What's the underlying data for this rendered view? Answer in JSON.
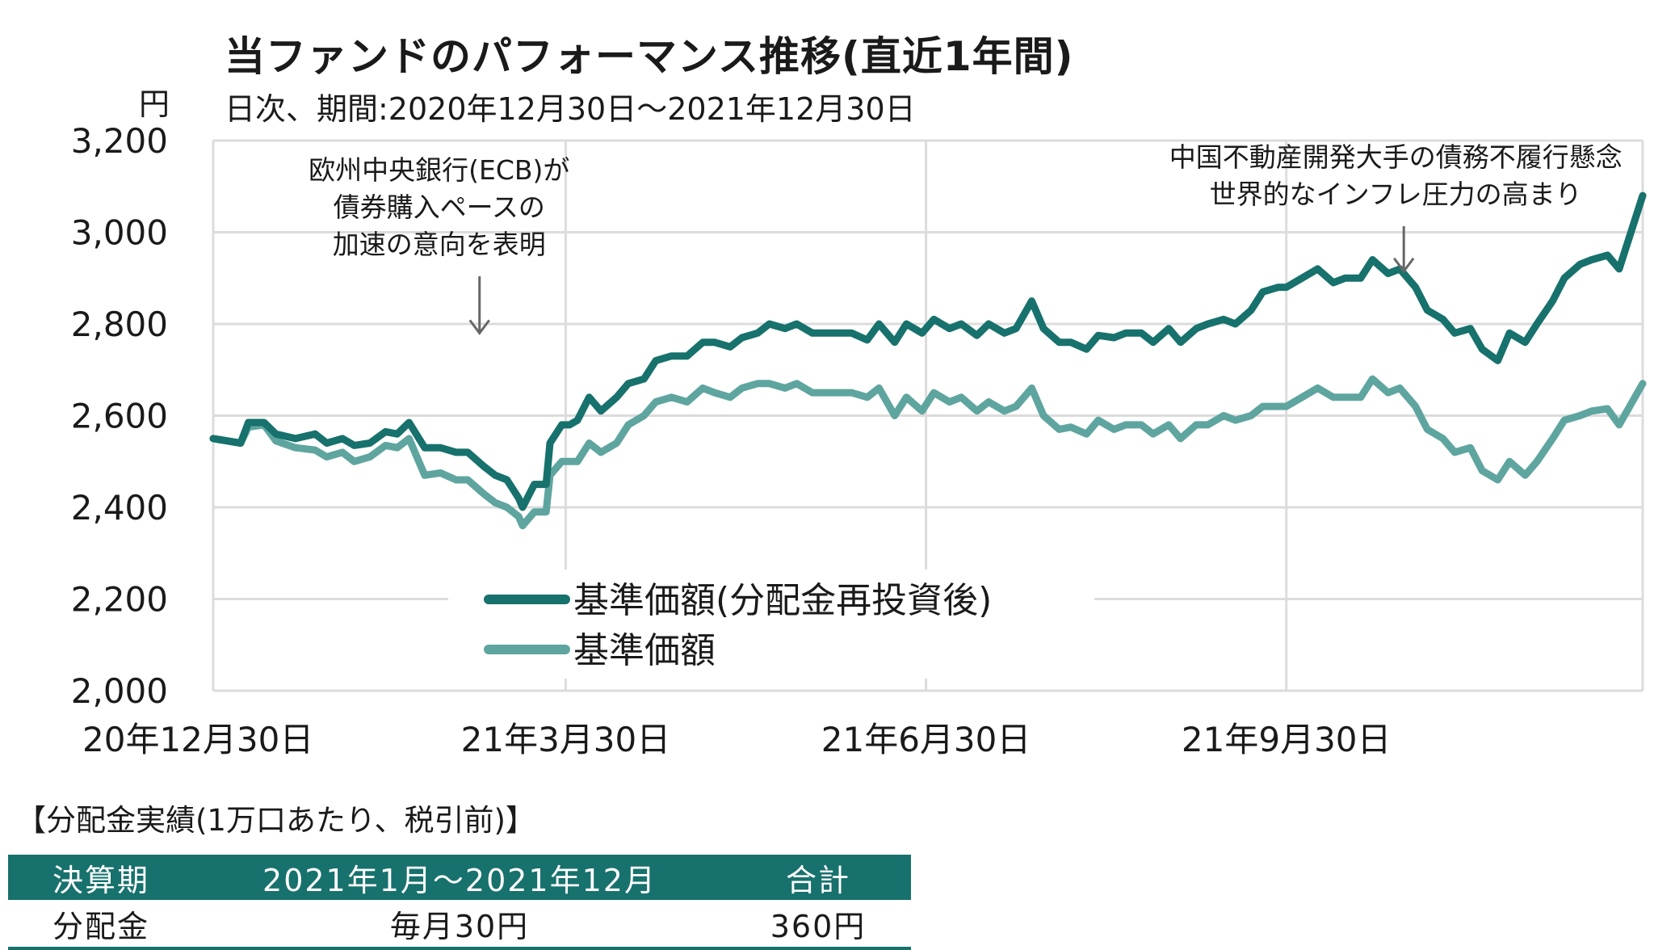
{
  "title": "当ファンドのパフォーマンス推移(直近1年間)",
  "subtitle": "日次、期間:2020年12月30日～2021年12月30日",
  "unit": "円",
  "chart_data": {
    "type": "line",
    "title": "当ファンドのパフォーマンス推移(直近1年間)",
    "subtitle": "日次、期間:2020年12月30日～2021年12月30日",
    "ylabel": "円",
    "ylim": [
      2000,
      3200
    ],
    "yticks": [
      {
        "value": 3200,
        "label": "3,200"
      },
      {
        "value": 3000,
        "label": "3,000"
      },
      {
        "value": 2800,
        "label": "2,800"
      },
      {
        "value": 2600,
        "label": "2,600"
      },
      {
        "value": 2400,
        "label": "2,400"
      },
      {
        "value": 2200,
        "label": "2,200"
      },
      {
        "value": 2000,
        "label": "2,000"
      }
    ],
    "xlim": [
      "2020-12-30",
      "2021-12-30"
    ],
    "xticks": [
      {
        "value": "2020-12-30",
        "label": "20年12月30日"
      },
      {
        "value": "2021-03-30",
        "label": "21年3月30日"
      },
      {
        "value": "2021-06-30",
        "label": "21年6月30日"
      },
      {
        "value": "2021-09-30",
        "label": "21年9月30日"
      }
    ],
    "grid": true,
    "legend_position": "center",
    "series": [
      {
        "name": "基準価額(分配金再投資後)",
        "color": "#17716c",
        "points": [
          [
            "2020-12-30",
            2550
          ],
          [
            "2021-01-06",
            2540
          ],
          [
            "2021-01-08",
            2585
          ],
          [
            "2021-01-12",
            2585
          ],
          [
            "2021-01-15",
            2560
          ],
          [
            "2021-01-20",
            2550
          ],
          [
            "2021-01-25",
            2560
          ],
          [
            "2021-01-28",
            2540
          ],
          [
            "2021-02-01",
            2550
          ],
          [
            "2021-02-04",
            2535
          ],
          [
            "2021-02-08",
            2540
          ],
          [
            "2021-02-12",
            2565
          ],
          [
            "2021-02-15",
            2560
          ],
          [
            "2021-02-18",
            2585
          ],
          [
            "2021-02-22",
            2530
          ],
          [
            "2021-02-26",
            2530
          ],
          [
            "2021-03-02",
            2520
          ],
          [
            "2021-03-05",
            2520
          ],
          [
            "2021-03-09",
            2490
          ],
          [
            "2021-03-12",
            2470
          ],
          [
            "2021-03-15",
            2460
          ],
          [
            "2021-03-18",
            2420
          ],
          [
            "2021-03-19",
            2400
          ],
          [
            "2021-03-22",
            2450
          ],
          [
            "2021-03-25",
            2450
          ],
          [
            "2021-03-26",
            2540
          ],
          [
            "2021-03-29",
            2580
          ],
          [
            "2021-03-31",
            2580
          ],
          [
            "2021-04-02",
            2590
          ],
          [
            "2021-04-05",
            2640
          ],
          [
            "2021-04-08",
            2610
          ],
          [
            "2021-04-12",
            2640
          ],
          [
            "2021-04-15",
            2670
          ],
          [
            "2021-04-19",
            2680
          ],
          [
            "2021-04-22",
            2720
          ],
          [
            "2021-04-26",
            2730
          ],
          [
            "2021-04-30",
            2730
          ],
          [
            "2021-05-04",
            2760
          ],
          [
            "2021-05-07",
            2760
          ],
          [
            "2021-05-11",
            2750
          ],
          [
            "2021-05-14",
            2770
          ],
          [
            "2021-05-18",
            2780
          ],
          [
            "2021-05-21",
            2800
          ],
          [
            "2021-05-25",
            2790
          ],
          [
            "2021-05-28",
            2800
          ],
          [
            "2021-06-01",
            2780
          ],
          [
            "2021-06-04",
            2780
          ],
          [
            "2021-06-08",
            2780
          ],
          [
            "2021-06-11",
            2780
          ],
          [
            "2021-06-15",
            2765
          ],
          [
            "2021-06-18",
            2800
          ],
          [
            "2021-06-22",
            2760
          ],
          [
            "2021-06-25",
            2800
          ],
          [
            "2021-06-29",
            2780
          ],
          [
            "2021-07-02",
            2810
          ],
          [
            "2021-07-06",
            2790
          ],
          [
            "2021-07-09",
            2800
          ],
          [
            "2021-07-13",
            2775
          ],
          [
            "2021-07-16",
            2800
          ],
          [
            "2021-07-20",
            2780
          ],
          [
            "2021-07-23",
            2790
          ],
          [
            "2021-07-27",
            2850
          ],
          [
            "2021-07-30",
            2790
          ],
          [
            "2021-08-03",
            2760
          ],
          [
            "2021-08-06",
            2760
          ],
          [
            "2021-08-10",
            2745
          ],
          [
            "2021-08-13",
            2775
          ],
          [
            "2021-08-17",
            2770
          ],
          [
            "2021-08-20",
            2780
          ],
          [
            "2021-08-24",
            2780
          ],
          [
            "2021-08-27",
            2760
          ],
          [
            "2021-08-31",
            2790
          ],
          [
            "2021-09-03",
            2760
          ],
          [
            "2021-09-07",
            2790
          ],
          [
            "2021-09-10",
            2800
          ],
          [
            "2021-09-14",
            2810
          ],
          [
            "2021-09-17",
            2800
          ],
          [
            "2021-09-21",
            2830
          ],
          [
            "2021-09-24",
            2870
          ],
          [
            "2021-09-28",
            2880
          ],
          [
            "2021-09-30",
            2880
          ],
          [
            "2021-10-04",
            2900
          ],
          [
            "2021-10-08",
            2920
          ],
          [
            "2021-10-12",
            2890
          ],
          [
            "2021-10-15",
            2900
          ],
          [
            "2021-10-19",
            2900
          ],
          [
            "2021-10-22",
            2940
          ],
          [
            "2021-10-26",
            2910
          ],
          [
            "2021-10-29",
            2920
          ],
          [
            "2021-11-02",
            2880
          ],
          [
            "2021-11-05",
            2830
          ],
          [
            "2021-11-09",
            2810
          ],
          [
            "2021-11-12",
            2780
          ],
          [
            "2021-11-16",
            2790
          ],
          [
            "2021-11-19",
            2745
          ],
          [
            "2021-11-23",
            2720
          ],
          [
            "2021-11-26",
            2780
          ],
          [
            "2021-11-30",
            2760
          ],
          [
            "2021-12-03",
            2800
          ],
          [
            "2021-12-07",
            2850
          ],
          [
            "2021-12-10",
            2900
          ],
          [
            "2021-12-14",
            2930
          ],
          [
            "2021-12-17",
            2940
          ],
          [
            "2021-12-21",
            2950
          ],
          [
            "2021-12-24",
            2920
          ],
          [
            "2021-12-30",
            3080
          ]
        ]
      },
      {
        "name": "基準価額",
        "color": "#5fa59f",
        "points": [
          [
            "2020-12-30",
            2550
          ],
          [
            "2021-01-06",
            2540
          ],
          [
            "2021-01-08",
            2575
          ],
          [
            "2021-01-12",
            2580
          ],
          [
            "2021-01-15",
            2545
          ],
          [
            "2021-01-20",
            2530
          ],
          [
            "2021-01-25",
            2525
          ],
          [
            "2021-01-28",
            2510
          ],
          [
            "2021-02-01",
            2520
          ],
          [
            "2021-02-04",
            2500
          ],
          [
            "2021-02-08",
            2510
          ],
          [
            "2021-02-12",
            2535
          ],
          [
            "2021-02-15",
            2530
          ],
          [
            "2021-02-18",
            2550
          ],
          [
            "2021-02-22",
            2470
          ],
          [
            "2021-02-26",
            2475
          ],
          [
            "2021-03-02",
            2460
          ],
          [
            "2021-03-05",
            2460
          ],
          [
            "2021-03-09",
            2430
          ],
          [
            "2021-03-12",
            2410
          ],
          [
            "2021-03-15",
            2400
          ],
          [
            "2021-03-18",
            2380
          ],
          [
            "2021-03-19",
            2360
          ],
          [
            "2021-03-22",
            2390
          ],
          [
            "2021-03-25",
            2390
          ],
          [
            "2021-03-26",
            2470
          ],
          [
            "2021-03-29",
            2500
          ],
          [
            "2021-03-31",
            2500
          ],
          [
            "2021-04-02",
            2500
          ],
          [
            "2021-04-05",
            2540
          ],
          [
            "2021-04-08",
            2520
          ],
          [
            "2021-04-12",
            2540
          ],
          [
            "2021-04-15",
            2580
          ],
          [
            "2021-04-19",
            2600
          ],
          [
            "2021-04-22",
            2630
          ],
          [
            "2021-04-26",
            2640
          ],
          [
            "2021-04-30",
            2630
          ],
          [
            "2021-05-04",
            2660
          ],
          [
            "2021-05-07",
            2650
          ],
          [
            "2021-05-11",
            2640
          ],
          [
            "2021-05-14",
            2660
          ],
          [
            "2021-05-18",
            2670
          ],
          [
            "2021-05-21",
            2670
          ],
          [
            "2021-05-25",
            2660
          ],
          [
            "2021-05-28",
            2670
          ],
          [
            "2021-06-01",
            2650
          ],
          [
            "2021-06-04",
            2650
          ],
          [
            "2021-06-08",
            2650
          ],
          [
            "2021-06-11",
            2650
          ],
          [
            "2021-06-15",
            2640
          ],
          [
            "2021-06-18",
            2660
          ],
          [
            "2021-06-22",
            2600
          ],
          [
            "2021-06-25",
            2640
          ],
          [
            "2021-06-29",
            2610
          ],
          [
            "2021-07-02",
            2650
          ],
          [
            "2021-07-06",
            2630
          ],
          [
            "2021-07-09",
            2640
          ],
          [
            "2021-07-13",
            2610
          ],
          [
            "2021-07-16",
            2630
          ],
          [
            "2021-07-20",
            2610
          ],
          [
            "2021-07-23",
            2620
          ],
          [
            "2021-07-27",
            2660
          ],
          [
            "2021-07-30",
            2600
          ],
          [
            "2021-08-03",
            2570
          ],
          [
            "2021-08-06",
            2575
          ],
          [
            "2021-08-10",
            2560
          ],
          [
            "2021-08-13",
            2590
          ],
          [
            "2021-08-17",
            2570
          ],
          [
            "2021-08-20",
            2580
          ],
          [
            "2021-08-24",
            2580
          ],
          [
            "2021-08-27",
            2560
          ],
          [
            "2021-08-31",
            2580
          ],
          [
            "2021-09-03",
            2550
          ],
          [
            "2021-09-07",
            2580
          ],
          [
            "2021-09-10",
            2580
          ],
          [
            "2021-09-14",
            2600
          ],
          [
            "2021-09-17",
            2590
          ],
          [
            "2021-09-21",
            2600
          ],
          [
            "2021-09-24",
            2620
          ],
          [
            "2021-09-28",
            2620
          ],
          [
            "2021-09-30",
            2620
          ],
          [
            "2021-10-04",
            2640
          ],
          [
            "2021-10-08",
            2660
          ],
          [
            "2021-10-12",
            2640
          ],
          [
            "2021-10-15",
            2640
          ],
          [
            "2021-10-19",
            2640
          ],
          [
            "2021-10-22",
            2680
          ],
          [
            "2021-10-26",
            2650
          ],
          [
            "2021-10-29",
            2660
          ],
          [
            "2021-11-02",
            2620
          ],
          [
            "2021-11-05",
            2570
          ],
          [
            "2021-11-09",
            2550
          ],
          [
            "2021-11-12",
            2520
          ],
          [
            "2021-11-16",
            2530
          ],
          [
            "2021-11-19",
            2480
          ],
          [
            "2021-11-23",
            2460
          ],
          [
            "2021-11-26",
            2500
          ],
          [
            "2021-11-30",
            2470
          ],
          [
            "2021-12-03",
            2500
          ],
          [
            "2021-12-07",
            2550
          ],
          [
            "2021-12-10",
            2590
          ],
          [
            "2021-12-14",
            2600
          ],
          [
            "2021-12-17",
            2610
          ],
          [
            "2021-12-21",
            2615
          ],
          [
            "2021-12-24",
            2580
          ],
          [
            "2021-12-30",
            2670
          ]
        ]
      }
    ],
    "annotations": [
      {
        "lines": [
          "欧州中央銀行(ECB)が",
          "債券購入ペースの",
          "加速の意向を表明"
        ],
        "x": "2021-03-08",
        "y": 2780
      },
      {
        "lines": [
          "中国不動産開発大手の債務不履行懸念",
          "世界的なインフレ圧力の高まり"
        ],
        "x": "2021-10-30",
        "y": 2915
      }
    ]
  },
  "distribution": {
    "heading": "【分配金実績(1万口あたり、税引前)】",
    "columns": [
      "決算期",
      "2021年1月～2021年12月",
      "合計"
    ],
    "rows": [
      [
        "分配金",
        "毎月30円",
        "360円"
      ]
    ],
    "header_color": "#17716c"
  }
}
